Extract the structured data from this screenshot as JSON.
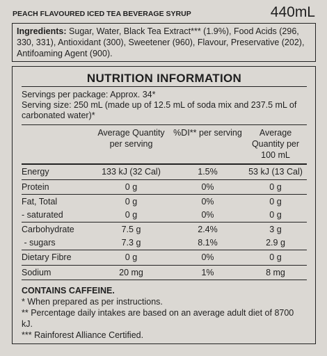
{
  "header": {
    "product": "PEACH FLAVOURED ICED TEA BEVERAGE SYRUP",
    "volume": "440mL"
  },
  "ingredients": {
    "label": "Ingredients:",
    "text": "Sugar, Water, Black Tea Extract*** (1.9%), Food Acids (296, 330, 331), Antioxidant (300), Sweetener (960), Flavour, Preservative (202), Antifoaming Agent (900)."
  },
  "nutrition": {
    "title": "NUTRITION INFORMATION",
    "servings_per_package": "Servings per package: Approx. 34*",
    "serving_size": "Serving size: 250 mL (made up of 12.5 mL of soda mix and 237.5 mL of carbonated water)*",
    "columns": [
      "Average Quantity per serving",
      "%DI** per serving",
      "Average Quantity per 100 mL"
    ],
    "groups": [
      [
        [
          "Energy",
          "133 kJ (32 Cal)",
          "1.5%",
          "53 kJ (13 Cal)"
        ]
      ],
      [
        [
          "Protein",
          "0 g",
          "0%",
          "0 g"
        ]
      ],
      [
        [
          "Fat, Total",
          "0 g",
          "0%",
          "0 g"
        ],
        [
          "- saturated",
          "0 g",
          "0%",
          "0 g"
        ]
      ],
      [
        [
          "Carbohydrate",
          "7.5 g",
          "2.4%",
          "3 g"
        ],
        [
          " - sugars",
          "7.3 g",
          "8.1%",
          "2.9 g"
        ]
      ],
      [
        [
          "Dietary Fibre",
          "0 g",
          "0%",
          "0 g"
        ]
      ],
      [
        [
          "Sodium",
          "20 mg",
          "1%",
          "8 mg"
        ]
      ]
    ],
    "warning": "CONTAINS CAFFEINE.",
    "notes": [
      "* When prepared as per instructions.",
      "** Percentage daily intakes are based on an average adult diet of 8700 kJ.",
      "*** Rainforest Alliance Certified."
    ]
  }
}
